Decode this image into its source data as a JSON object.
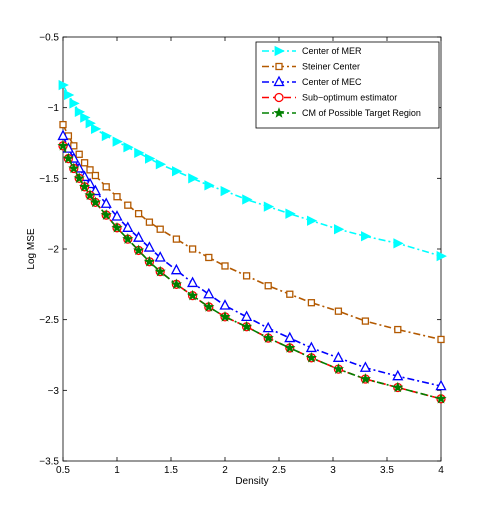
{
  "chart_data": {
    "type": "line",
    "title": "",
    "xlabel": "Density",
    "ylabel": "Log MSE",
    "xlim": [
      0.5,
      4
    ],
    "ylim": [
      -3.5,
      -0.5
    ],
    "xticks": [
      0.5,
      1,
      1.5,
      2,
      2.5,
      3,
      3.5,
      4
    ],
    "xtick_labels": [
      "0.5",
      "1",
      "1.5",
      "2",
      "2.5",
      "3",
      "3.5",
      "4"
    ],
    "yticks": [
      -0.5,
      -1,
      -1.5,
      -2,
      -2.5,
      -3,
      -3.5
    ],
    "ytick_labels": [
      "−0.5",
      "−1",
      "−1.5",
      "−2",
      "−2.5",
      "−3",
      "−3.5"
    ],
    "grid": false,
    "legend_position": "top-right",
    "x": [
      0.5,
      0.55,
      0.6,
      0.65,
      0.7,
      0.75,
      0.8,
      0.9,
      1.0,
      1.1,
      1.2,
      1.3,
      1.4,
      1.55,
      1.7,
      1.85,
      2.0,
      2.2,
      2.4,
      2.6,
      2.8,
      3.05,
      3.3,
      3.6,
      4.0
    ],
    "series": [
      {
        "name": "Center of MER",
        "color": "#00ffff",
        "line_style": "dash-dot",
        "marker": "triangle-right",
        "values": [
          -0.84,
          -0.91,
          -0.97,
          -1.03,
          -1.07,
          -1.11,
          -1.15,
          -1.2,
          -1.24,
          -1.28,
          -1.32,
          -1.36,
          -1.4,
          -1.45,
          -1.5,
          -1.55,
          -1.59,
          -1.65,
          -1.7,
          -1.75,
          -1.8,
          -1.86,
          -1.91,
          -1.96,
          -2.05
        ]
      },
      {
        "name": "Steiner Center",
        "color": "#b35900",
        "line_style": "dash-dot",
        "marker": "square",
        "values": [
          -1.12,
          -1.2,
          -1.27,
          -1.33,
          -1.39,
          -1.44,
          -1.48,
          -1.56,
          -1.63,
          -1.69,
          -1.75,
          -1.81,
          -1.86,
          -1.93,
          -2.0,
          -2.06,
          -2.12,
          -2.19,
          -2.26,
          -2.32,
          -2.38,
          -2.44,
          -2.51,
          -2.57,
          -2.64
        ]
      },
      {
        "name": "Center of MEC",
        "color": "#0000ff",
        "line_style": "dash-dot",
        "marker": "triangle-up",
        "values": [
          -1.2,
          -1.29,
          -1.36,
          -1.43,
          -1.49,
          -1.54,
          -1.59,
          -1.68,
          -1.77,
          -1.85,
          -1.92,
          -1.99,
          -2.06,
          -2.15,
          -2.24,
          -2.32,
          -2.4,
          -2.48,
          -2.56,
          -2.63,
          -2.7,
          -2.77,
          -2.84,
          -2.9,
          -2.97
        ]
      },
      {
        "name": "Sub−optimum estimator",
        "color": "#ff0000",
        "line_style": "dashed",
        "marker": "circle",
        "values": [
          -1.27,
          -1.36,
          -1.43,
          -1.5,
          -1.56,
          -1.62,
          -1.67,
          -1.76,
          -1.85,
          -1.93,
          -2.01,
          -2.09,
          -2.16,
          -2.25,
          -2.33,
          -2.41,
          -2.48,
          -2.55,
          -2.63,
          -2.7,
          -2.77,
          -2.85,
          -2.92,
          -2.98,
          -3.06
        ]
      },
      {
        "name": "CM of Possible Target Region",
        "color": "#008000",
        "line_style": "dash-dot",
        "marker": "star",
        "values": [
          -1.27,
          -1.36,
          -1.43,
          -1.5,
          -1.56,
          -1.62,
          -1.67,
          -1.76,
          -1.85,
          -1.93,
          -2.01,
          -2.09,
          -2.16,
          -2.25,
          -2.33,
          -2.41,
          -2.48,
          -2.55,
          -2.63,
          -2.7,
          -2.77,
          -2.85,
          -2.92,
          -2.98,
          -3.06
        ]
      }
    ]
  }
}
